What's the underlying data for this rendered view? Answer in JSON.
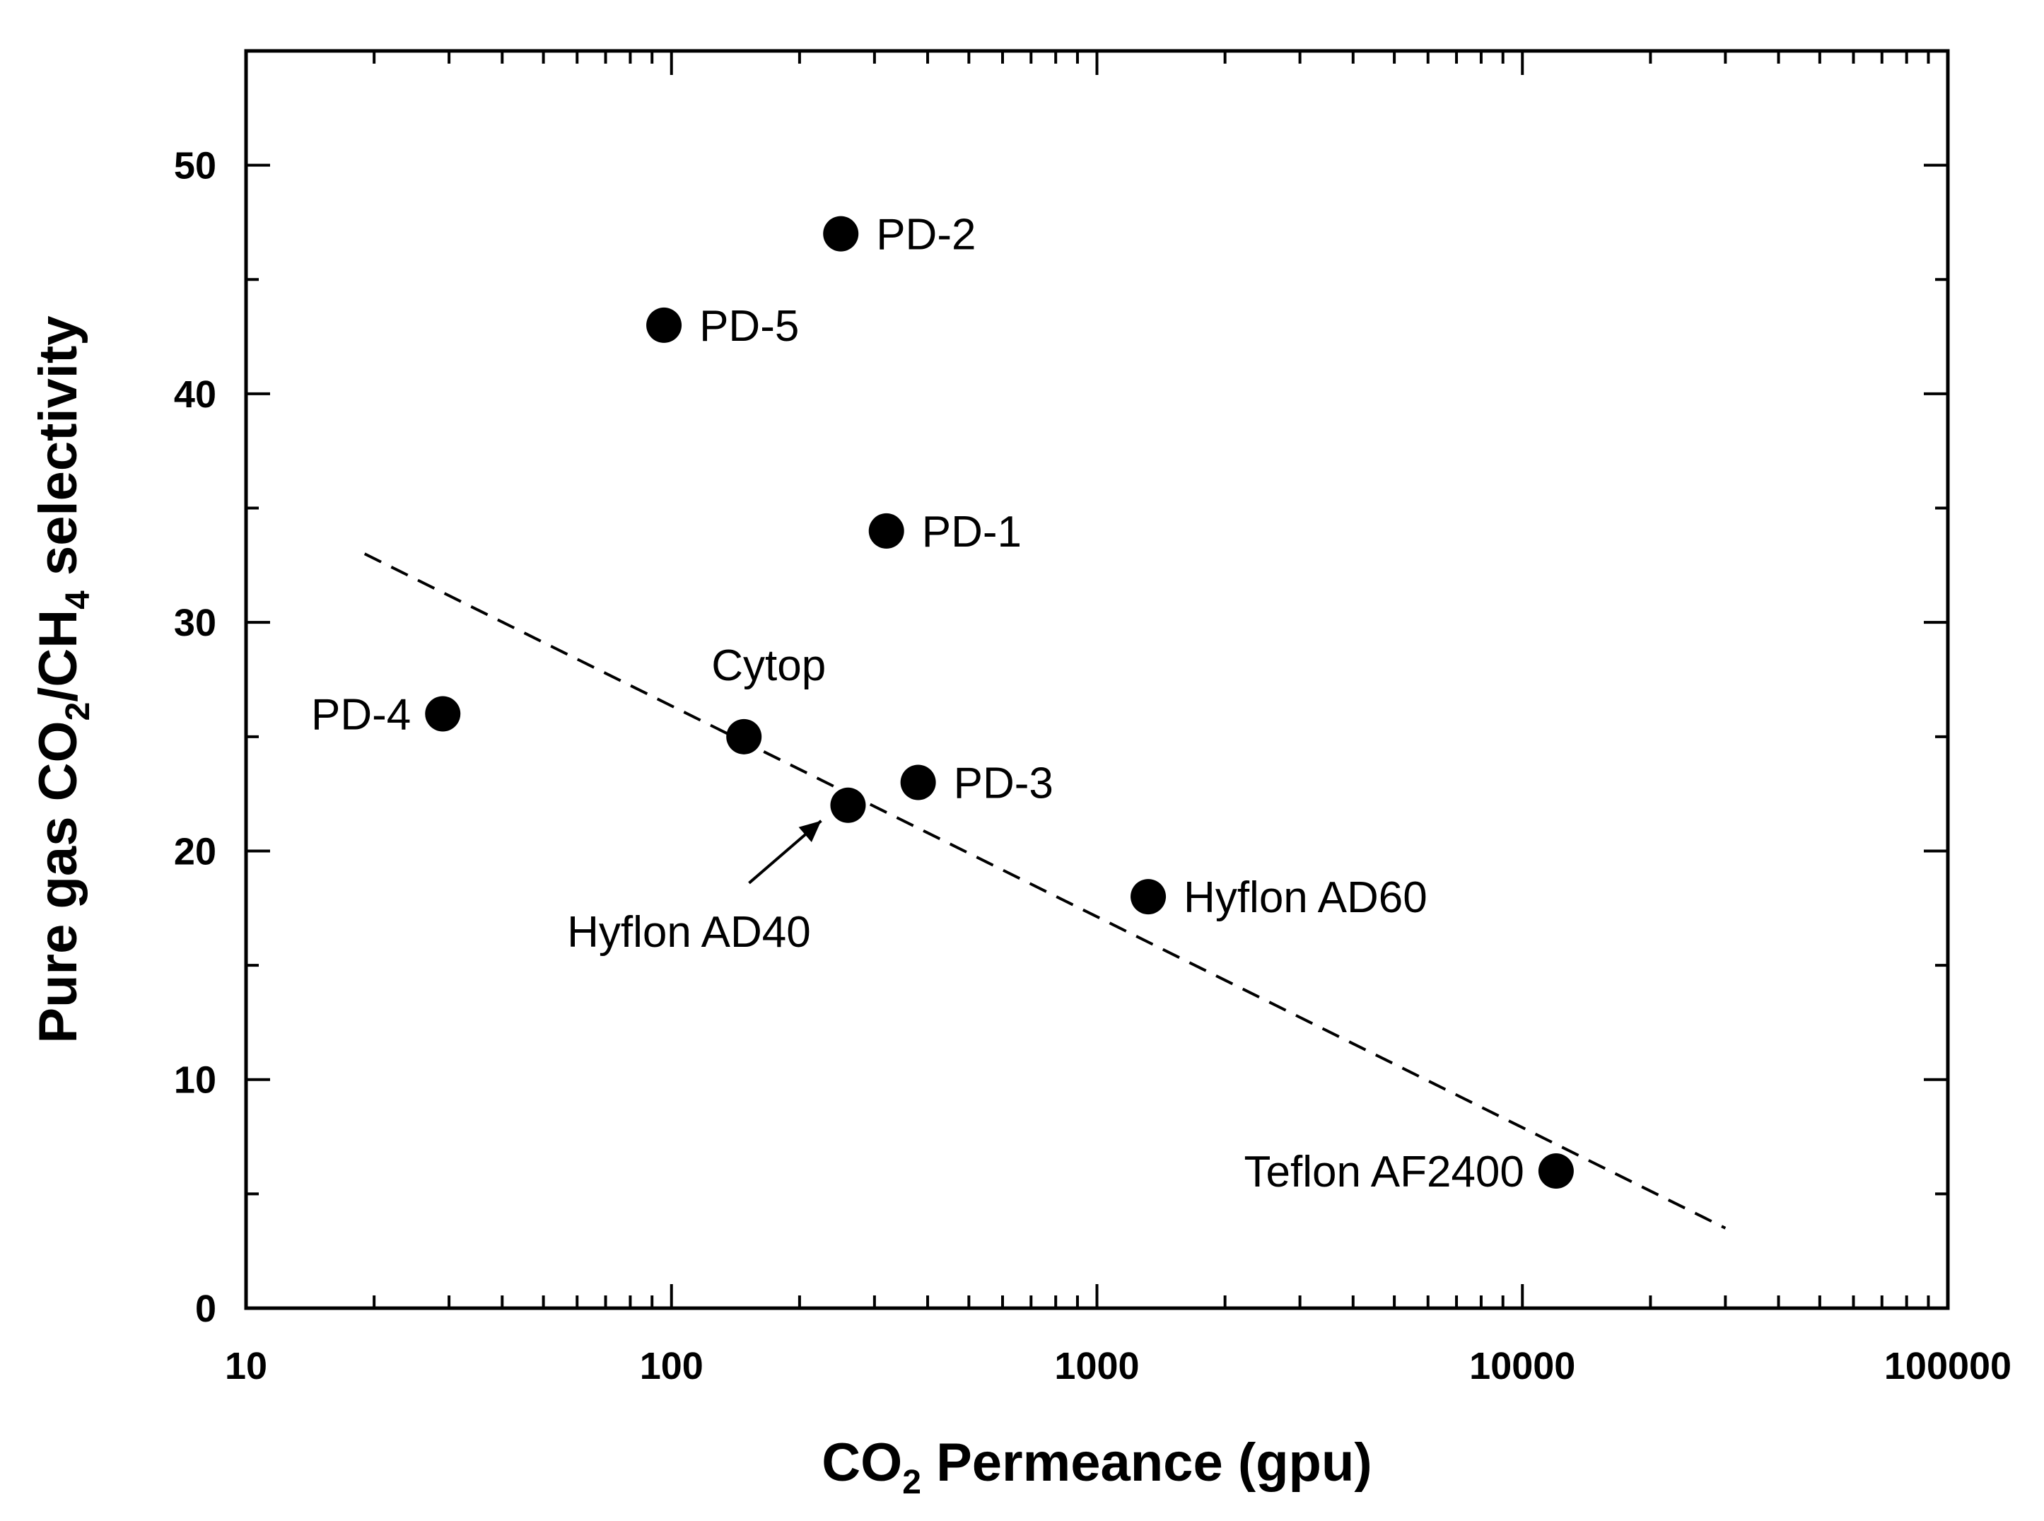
{
  "chart_data": {
    "type": "scatter",
    "title": "",
    "xscale": "log",
    "xlim": [
      10,
      100000
    ],
    "ylim": [
      0,
      55
    ],
    "xticks": [
      {
        "value": 10,
        "label": "10"
      },
      {
        "value": 100,
        "label": "100"
      },
      {
        "value": 1000,
        "label": "1000"
      },
      {
        "value": 10000,
        "label": "10000"
      },
      {
        "value": 100000,
        "label": "100000"
      }
    ],
    "yticks": [
      {
        "value": 0,
        "label": "0"
      },
      {
        "value": 10,
        "label": "10"
      },
      {
        "value": 20,
        "label": "20"
      },
      {
        "value": 30,
        "label": "30"
      },
      {
        "value": 40,
        "label": "40"
      },
      {
        "value": 50,
        "label": "50"
      }
    ],
    "xlabel": {
      "main": "CO",
      "sub": "2",
      "rest": " Permeance (gpu)"
    },
    "ylabel": {
      "parts": [
        "Pure gas CO",
        "2",
        "/CH",
        "4",
        " selectivity"
      ]
    },
    "points": [
      {
        "label": "PD-2",
        "x": 250,
        "y": 47,
        "label_pos": "right"
      },
      {
        "label": "PD-5",
        "x": 96,
        "y": 43,
        "label_pos": "right"
      },
      {
        "label": "PD-1",
        "x": 320,
        "y": 34,
        "label_pos": "right"
      },
      {
        "label": "PD-4",
        "x": 29,
        "y": 26,
        "label_pos": "left"
      },
      {
        "label": "Cytop",
        "x": 148,
        "y": 25,
        "label_pos": "above"
      },
      {
        "label": "PD-3",
        "x": 380,
        "y": 23,
        "label_pos": "right"
      },
      {
        "label": "Hyflon AD40",
        "x": 260,
        "y": 22,
        "label_pos": "arrow-below-left"
      },
      {
        "label": "Hyflon AD60",
        "x": 1320,
        "y": 18,
        "label_pos": "right"
      },
      {
        "label": "Teflon AF2400",
        "x": 12000,
        "y": 6,
        "label_pos": "left"
      }
    ],
    "trendline": {
      "style": "dashed",
      "points": [
        {
          "x": 19,
          "y": 33
        },
        {
          "x": 30000,
          "y": 3.5
        }
      ]
    },
    "colors": {
      "marker": "#000000",
      "axis": "#000000",
      "background": "#ffffff"
    }
  }
}
